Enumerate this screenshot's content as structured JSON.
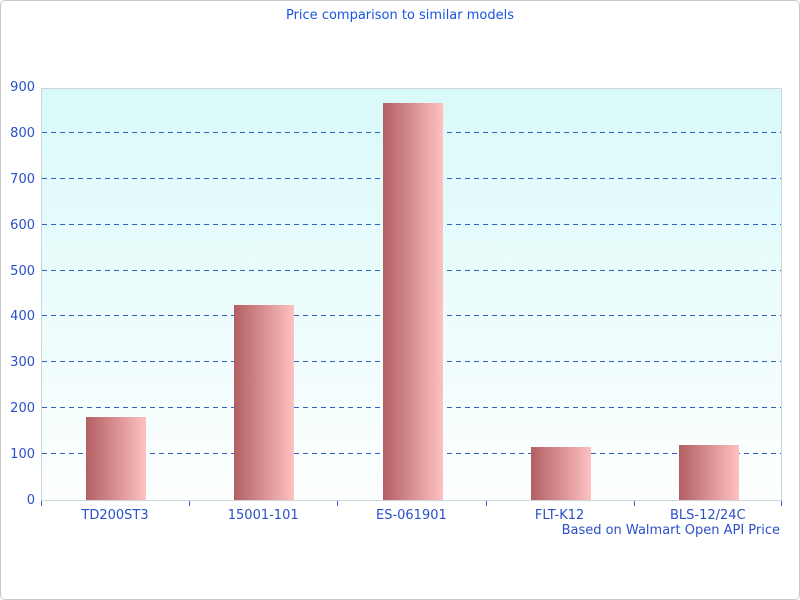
{
  "title": "Price comparison to similar models",
  "caption": "Based on Walmart Open API Price",
  "colors": {
    "title_text": "#1756e0",
    "axis_text": "#2b50c8",
    "gridline": "#3060c8",
    "bar_gradient_start": "#b25f62",
    "bar_gradient_end": "#ffc1c1",
    "plot_bg_top": "#d9f9f9",
    "plot_bg_bottom": "#feffff",
    "axis_line": "#ccd5d9",
    "panel_border": "#c9c9c9"
  },
  "chart_data": {
    "type": "bar",
    "categories": [
      "TD200ST3",
      "15001-101",
      "ES-061901",
      "FLT-K12",
      "BLS-12/24C"
    ],
    "values": [
      180,
      425,
      865,
      115,
      120
    ],
    "title": "Price comparison to similar models",
    "xlabel": "",
    "ylabel": "",
    "ylim": [
      0,
      900
    ],
    "ytick_interval": 100,
    "grid": "horizontal-dashed",
    "legend": "none",
    "annotation": "Based on Walmart Open API Price",
    "bar_orientation": "vertical"
  }
}
